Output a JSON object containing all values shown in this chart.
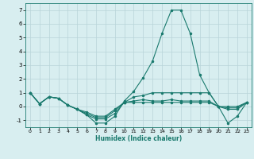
{
  "x": [
    0,
    1,
    2,
    3,
    4,
    5,
    6,
    7,
    8,
    9,
    10,
    11,
    12,
    13,
    14,
    15,
    16,
    17,
    18,
    19,
    20,
    21,
    22,
    23
  ],
  "lines": [
    [
      1.0,
      0.2,
      0.7,
      0.6,
      0.1,
      -0.2,
      -0.6,
      -1.2,
      -1.2,
      -0.7,
      0.4,
      1.1,
      2.1,
      3.3,
      5.3,
      7.0,
      7.0,
      5.3,
      2.3,
      1.0,
      0.0,
      -1.2,
      -0.7,
      0.3
    ],
    [
      1.0,
      0.2,
      0.7,
      0.6,
      0.1,
      -0.2,
      -0.6,
      -0.9,
      -0.9,
      -0.5,
      0.3,
      0.7,
      0.8,
      1.0,
      1.0,
      1.0,
      1.0,
      1.0,
      1.0,
      1.0,
      0.0,
      -0.2,
      -0.2,
      0.3
    ],
    [
      1.0,
      0.2,
      0.7,
      0.6,
      0.1,
      -0.2,
      -0.5,
      -0.8,
      -0.8,
      -0.3,
      0.3,
      0.4,
      0.5,
      0.4,
      0.4,
      0.5,
      0.4,
      0.4,
      0.4,
      0.4,
      0.0,
      -0.1,
      -0.1,
      0.3
    ],
    [
      1.0,
      0.2,
      0.7,
      0.6,
      0.1,
      -0.2,
      -0.4,
      -0.7,
      -0.7,
      -0.2,
      0.3,
      0.3,
      0.3,
      0.3,
      0.3,
      0.3,
      0.3,
      0.3,
      0.3,
      0.3,
      0.0,
      0.0,
      0.0,
      0.3
    ]
  ],
  "line_color": "#1a7a6e",
  "bg_color": "#d8eef0",
  "grid_color": "#b8d4d8",
  "xlabel": "Humidex (Indice chaleur)",
  "xlim": [
    -0.5,
    23.5
  ],
  "ylim": [
    -1.5,
    7.5
  ],
  "yticks": [
    -1,
    0,
    1,
    2,
    3,
    4,
    5,
    6,
    7
  ],
  "xticks": [
    0,
    1,
    2,
    3,
    4,
    5,
    6,
    7,
    8,
    9,
    10,
    11,
    12,
    13,
    14,
    15,
    16,
    17,
    18,
    19,
    20,
    21,
    22,
    23
  ]
}
